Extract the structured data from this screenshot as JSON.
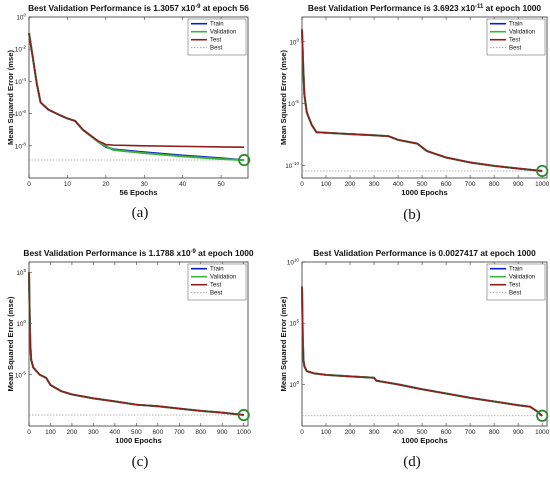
{
  "colors": {
    "train": "#0a1ec8",
    "validation": "#3cb43c",
    "test": "#8c1e1e",
    "best": "#9a9a9a",
    "best_marker": "#2e8b2e"
  },
  "legend_labels": [
    "Train",
    "Validation",
    "Test",
    "Best"
  ],
  "chart_data": [
    {
      "type": "line",
      "caption": "(a)",
      "title_prefix": "Best Validation Performance is 1.3057 x10",
      "title_exp": "-9",
      "title_suffix": " at epoch 56",
      "xlabel": "56 Epochs",
      "ylabel": "Mean Squared Error  (mse)",
      "y_scale": "log",
      "xlim": [
        0,
        57
      ],
      "ylim": [
        1e-10,
        1
      ],
      "x_ticks": [
        0,
        10,
        20,
        30,
        40,
        50
      ],
      "y_ticks": [
        {
          "v": 1,
          "e": "0"
        },
        {
          "v": 0.01,
          "e": "-2"
        },
        {
          "v": 0.0001,
          "e": "-4"
        },
        {
          "v": 1e-06,
          "e": "-6"
        },
        {
          "v": 1e-08,
          "e": "-8"
        }
      ],
      "grid": false,
      "legend": "top-right",
      "best": {
        "x": 56,
        "y": 1.3057e-09
      },
      "series": [
        {
          "name": "Train",
          "points": [
            [
              0,
              0.1
            ],
            [
              1,
              0.003
            ],
            [
              2,
              8e-05
            ],
            [
              3,
              5e-06
            ],
            [
              5,
              1.8e-06
            ],
            [
              8,
              8e-07
            ],
            [
              10,
              5e-07
            ],
            [
              12,
              3.5e-07
            ],
            [
              14,
              1e-07
            ],
            [
              18,
              1.8e-08
            ],
            [
              20,
              8.5e-09
            ],
            [
              22,
              6e-09
            ],
            [
              30,
              4e-09
            ],
            [
              40,
              2.5e-09
            ],
            [
              50,
              1.7e-09
            ],
            [
              56,
              1.3e-09
            ]
          ]
        },
        {
          "name": "Validation",
          "points": [
            [
              0,
              0.1
            ],
            [
              1,
              0.003
            ],
            [
              2,
              8e-05
            ],
            [
              3,
              5e-06
            ],
            [
              5,
              1.8e-06
            ],
            [
              8,
              8e-07
            ],
            [
              10,
              5e-07
            ],
            [
              12,
              3.5e-07
            ],
            [
              14,
              1e-07
            ],
            [
              18,
              1.8e-08
            ],
            [
              20,
              9.5e-09
            ],
            [
              22,
              5.5e-09
            ],
            [
              30,
              3.5e-09
            ],
            [
              40,
              2.2e-09
            ],
            [
              50,
              1.5e-09
            ],
            [
              56,
              1.3e-09
            ]
          ]
        },
        {
          "name": "Test",
          "points": [
            [
              0,
              0.1
            ],
            [
              1,
              0.003
            ],
            [
              2,
              8e-05
            ],
            [
              3,
              5e-06
            ],
            [
              5,
              1.8e-06
            ],
            [
              8,
              8e-07
            ],
            [
              10,
              5e-07
            ],
            [
              12,
              3.5e-07
            ],
            [
              14,
              1e-07
            ],
            [
              18,
              2e-08
            ],
            [
              20,
              1.2e-08
            ],
            [
              22,
              1.1e-08
            ],
            [
              30,
              1e-08
            ],
            [
              40,
              9.2e-09
            ],
            [
              50,
              8.5e-09
            ],
            [
              56,
              8.2e-09
            ]
          ]
        }
      ]
    },
    {
      "type": "line",
      "caption": "(b)",
      "title_prefix": "Best Validation Performance is 3.6923 x10",
      "title_exp": "-11",
      "title_suffix": " at epoch 1000",
      "xlabel": "1000 Epochs",
      "ylabel": "Mean Squared Error  (mse)",
      "y_scale": "log",
      "xlim": [
        0,
        1020
      ],
      "ylim": [
        1e-11,
        100
      ],
      "x_ticks": [
        0,
        100,
        200,
        300,
        400,
        500,
        600,
        700,
        800,
        900,
        1000
      ],
      "y_ticks": [
        {
          "v": 1,
          "e": "0"
        },
        {
          "v": 1e-05,
          "e": "-5"
        },
        {
          "v": 1e-10,
          "e": "-10"
        }
      ],
      "grid": false,
      "legend": "top-right",
      "best": {
        "x": 1000,
        "y": 3.6923e-11
      },
      "series": [
        {
          "name": "Train",
          "points": [
            [
              0,
              10
            ],
            [
              5,
              0.01
            ],
            [
              10,
              5e-05
            ],
            [
              20,
              2e-06
            ],
            [
              40,
              2e-07
            ],
            [
              60,
              5e-08
            ],
            [
              100,
              4.5e-08
            ],
            [
              200,
              3.5e-08
            ],
            [
              300,
              2.8e-08
            ],
            [
              360,
              2.4e-08
            ],
            [
              400,
              1.2e-08
            ],
            [
              480,
              6e-09
            ],
            [
              520,
              1.5e-09
            ],
            [
              600,
              4.5e-10
            ],
            [
              700,
              1.8e-10
            ],
            [
              800,
              9.5e-11
            ],
            [
              900,
              5.8e-11
            ],
            [
              1000,
              3.7e-11
            ]
          ]
        },
        {
          "name": "Validation",
          "points": [
            [
              0,
              10
            ],
            [
              5,
              0.01
            ],
            [
              10,
              5e-05
            ],
            [
              20,
              2e-06
            ],
            [
              40,
              2e-07
            ],
            [
              60,
              5e-08
            ],
            [
              100,
              4.5e-08
            ],
            [
              200,
              3.5e-08
            ],
            [
              300,
              2.8e-08
            ],
            [
              360,
              2.4e-08
            ],
            [
              400,
              1.2e-08
            ],
            [
              480,
              6e-09
            ],
            [
              520,
              1.5e-09
            ],
            [
              600,
              4.5e-10
            ],
            [
              700,
              1.8e-10
            ],
            [
              800,
              9.5e-11
            ],
            [
              900,
              5.8e-11
            ],
            [
              1000,
              3.7e-11
            ]
          ]
        },
        {
          "name": "Test",
          "points": [
            [
              0,
              10
            ],
            [
              5,
              0.01
            ],
            [
              10,
              5e-05
            ],
            [
              20,
              2e-06
            ],
            [
              40,
              2e-07
            ],
            [
              60,
              5e-08
            ],
            [
              100,
              4.5e-08
            ],
            [
              200,
              3.5e-08
            ],
            [
              300,
              2.8e-08
            ],
            [
              360,
              2.4e-08
            ],
            [
              400,
              1.2e-08
            ],
            [
              480,
              6e-09
            ],
            [
              520,
              1.5e-09
            ],
            [
              600,
              4.5e-10
            ],
            [
              700,
              1.8e-10
            ],
            [
              800,
              9.5e-11
            ],
            [
              900,
              5.8e-11
            ],
            [
              1000,
              3.7e-11
            ]
          ]
        }
      ]
    },
    {
      "type": "line",
      "caption": "(c)",
      "title_prefix": "Best Validation Performance is 1.1788 x10",
      "title_exp": "-9",
      "title_suffix": " at epoch 1000",
      "xlabel": "1000 Epochs",
      "ylabel": "Mean Squared Error  (mse)",
      "y_scale": "log",
      "xlim": [
        0,
        1020
      ],
      "ylim": [
        1e-10,
        1000000.0
      ],
      "x_ticks": [
        0,
        100,
        200,
        300,
        400,
        500,
        600,
        700,
        800,
        900,
        1000
      ],
      "y_ticks": [
        {
          "v": 100000,
          "e": "5"
        },
        {
          "v": 1,
          "e": "0"
        },
        {
          "v": 1e-05,
          "e": "-5"
        }
      ],
      "grid": false,
      "legend": "top-right",
      "best": {
        "x": 1000,
        "y": 1.1788e-09
      },
      "series": [
        {
          "name": "Train",
          "points": [
            [
              0,
              100000
            ],
            [
              3,
              10
            ],
            [
              6,
              0.01
            ],
            [
              10,
              0.0003
            ],
            [
              20,
              5e-05
            ],
            [
              50,
              1e-05
            ],
            [
              80,
              5e-06
            ],
            [
              100,
              1e-06
            ],
            [
              150,
              2.5e-07
            ],
            [
              200,
              1.2e-07
            ],
            [
              300,
              5e-08
            ],
            [
              400,
              2.5e-08
            ],
            [
              500,
              1.2e-08
            ],
            [
              600,
              8.5e-09
            ],
            [
              700,
              5e-09
            ],
            [
              800,
              3e-09
            ],
            [
              900,
              2e-09
            ],
            [
              1000,
              1.2e-09
            ]
          ]
        },
        {
          "name": "Validation",
          "points": [
            [
              0,
              100000
            ],
            [
              3,
              10
            ],
            [
              6,
              0.01
            ],
            [
              10,
              0.0003
            ],
            [
              20,
              5e-05
            ],
            [
              50,
              1e-05
            ],
            [
              80,
              5e-06
            ],
            [
              100,
              1e-06
            ],
            [
              150,
              2.5e-07
            ],
            [
              200,
              1.2e-07
            ],
            [
              300,
              5e-08
            ],
            [
              400,
              2.5e-08
            ],
            [
              500,
              1.2e-08
            ],
            [
              600,
              8.5e-09
            ],
            [
              700,
              5e-09
            ],
            [
              800,
              3e-09
            ],
            [
              900,
              2e-09
            ],
            [
              1000,
              1.2e-09
            ]
          ]
        },
        {
          "name": "Test",
          "points": [
            [
              0,
              100000
            ],
            [
              3,
              10
            ],
            [
              6,
              0.01
            ],
            [
              10,
              0.0003
            ],
            [
              20,
              5e-05
            ],
            [
              50,
              1e-05
            ],
            [
              80,
              5e-06
            ],
            [
              100,
              1e-06
            ],
            [
              150,
              2.5e-07
            ],
            [
              200,
              1.2e-07
            ],
            [
              300,
              5e-08
            ],
            [
              400,
              2.5e-08
            ],
            [
              500,
              1.2e-08
            ],
            [
              600,
              8.5e-09
            ],
            [
              700,
              5e-09
            ],
            [
              800,
              3e-09
            ],
            [
              900,
              2e-09
            ],
            [
              1000,
              1.2e-09
            ]
          ]
        }
      ]
    },
    {
      "type": "line",
      "caption": "(d)",
      "title_prefix": "Best Validation Performance is 0.0027417 at epoch 1000",
      "title_exp": "",
      "title_suffix": "",
      "xlabel": "1000 Epochs",
      "ylabel": "Mean Squared Error  (mse)",
      "y_scale": "log",
      "xlim": [
        0,
        1020
      ],
      "ylim": [
        0.0004,
        10000000000.0
      ],
      "x_ticks": [
        0,
        100,
        200,
        300,
        400,
        500,
        600,
        700,
        800,
        900,
        1000
      ],
      "y_ticks": [
        {
          "v": 10000000000.0,
          "e": "10"
        },
        {
          "v": 100000,
          "e": "5"
        },
        {
          "v": 1,
          "e": "0"
        }
      ],
      "grid": false,
      "legend": "top-right",
      "best": {
        "x": 1000,
        "y": 0.0027417
      },
      "series": [
        {
          "name": "Train",
          "points": [
            [
              0,
              100000000.0
            ],
            [
              3,
              10000
            ],
            [
              6,
              100
            ],
            [
              10,
              30
            ],
            [
              20,
              12
            ],
            [
              50,
              8
            ],
            [
              100,
              6
            ],
            [
              200,
              4.5
            ],
            [
              300,
              3.5
            ],
            [
              310,
              2
            ],
            [
              400,
              1
            ],
            [
              500,
              0.4
            ],
            [
              600,
              0.18
            ],
            [
              700,
              0.08
            ],
            [
              800,
              0.04
            ],
            [
              900,
              0.02
            ],
            [
              950,
              0.015
            ],
            [
              980,
              0.006
            ],
            [
              1000,
              0.0027
            ]
          ]
        },
        {
          "name": "Validation",
          "points": [
            [
              0,
              100000000.0
            ],
            [
              3,
              10000
            ],
            [
              6,
              100
            ],
            [
              10,
              30
            ],
            [
              20,
              12
            ],
            [
              50,
              8
            ],
            [
              100,
              6
            ],
            [
              200,
              4.5
            ],
            [
              300,
              3.5
            ],
            [
              310,
              2
            ],
            [
              400,
              1
            ],
            [
              500,
              0.4
            ],
            [
              600,
              0.18
            ],
            [
              700,
              0.08
            ],
            [
              800,
              0.04
            ],
            [
              900,
              0.02
            ],
            [
              950,
              0.015
            ],
            [
              980,
              0.006
            ],
            [
              1000,
              0.0027
            ]
          ]
        },
        {
          "name": "Test",
          "points": [
            [
              0,
              100000000.0
            ],
            [
              3,
              10000
            ],
            [
              6,
              100
            ],
            [
              10,
              30
            ],
            [
              20,
              12
            ],
            [
              50,
              8
            ],
            [
              100,
              6
            ],
            [
              200,
              4.5
            ],
            [
              300,
              3.5
            ],
            [
              310,
              2
            ],
            [
              400,
              1
            ],
            [
              500,
              0.4
            ],
            [
              600,
              0.18
            ],
            [
              700,
              0.08
            ],
            [
              800,
              0.04
            ],
            [
              900,
              0.02
            ],
            [
              950,
              0.015
            ],
            [
              980,
              0.006
            ],
            [
              1000,
              0.0027
            ]
          ]
        }
      ]
    }
  ]
}
